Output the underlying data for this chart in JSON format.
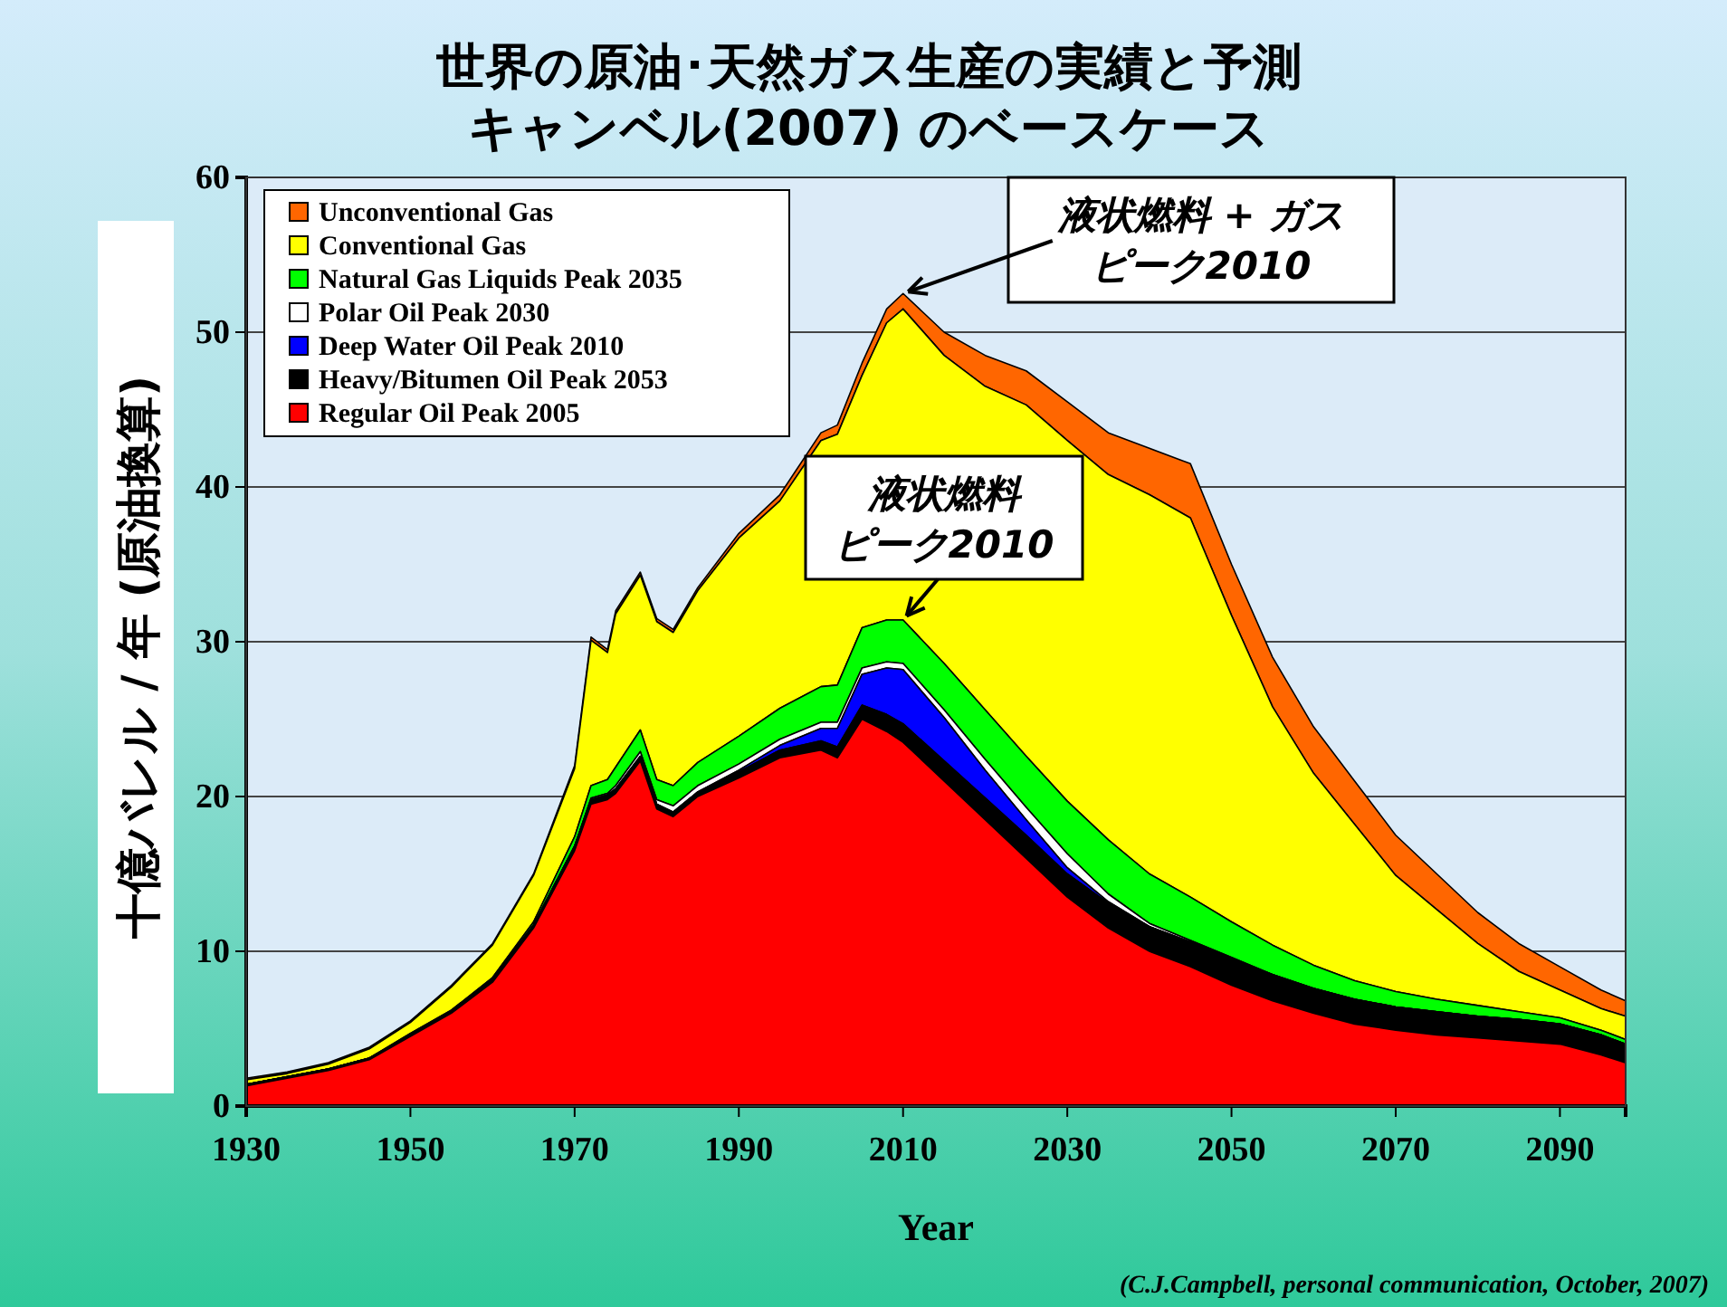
{
  "chart_data": {
    "type": "area",
    "stacked": true,
    "title": "世界の原油･天然ガス生産の実績と予測キャンベル(2007) のベースケース",
    "xlabel": "Year",
    "ylabel": "十億バレル / 年 (原油換算)",
    "x": [
      1930,
      1935,
      1940,
      1945,
      1950,
      1955,
      1960,
      1965,
      1970,
      1972,
      1974,
      1975,
      1978,
      1980,
      1982,
      1985,
      1990,
      1995,
      2000,
      2002,
      2005,
      2008,
      2010,
      2015,
      2020,
      2025,
      2030,
      2035,
      2040,
      2045,
      2050,
      2055,
      2060,
      2065,
      2070,
      2075,
      2080,
      2085,
      2090,
      2095,
      2098
    ],
    "series": [
      {
        "name": "Regular Oil Peak 2005",
        "color": "#ff0000",
        "values": [
          1.3,
          1.8,
          2.3,
          3.0,
          4.5,
          6.0,
          8.0,
          11.5,
          16.5,
          19.5,
          19.8,
          20.2,
          22.3,
          19.2,
          18.7,
          20.0,
          21.2,
          22.5,
          23.0,
          22.5,
          25.0,
          24.2,
          23.5,
          21.0,
          18.5,
          16.0,
          13.5,
          11.5,
          10.0,
          9.0,
          7.8,
          6.8,
          6.0,
          5.3,
          4.9,
          4.6,
          4.4,
          4.2,
          4.0,
          3.3,
          2.8
        ]
      },
      {
        "name": "Heavy/Bitumen Oil Peak 2053",
        "color": "#000000",
        "values": [
          0.1,
          0.1,
          0.1,
          0.1,
          0.1,
          0.1,
          0.2,
          0.2,
          0.3,
          0.3,
          0.3,
          0.3,
          0.3,
          0.3,
          0.3,
          0.3,
          0.4,
          0.5,
          0.6,
          0.7,
          0.9,
          1.1,
          1.2,
          1.3,
          1.4,
          1.5,
          1.5,
          1.6,
          1.6,
          1.6,
          1.7,
          1.7,
          1.6,
          1.6,
          1.5,
          1.5,
          1.4,
          1.4,
          1.3,
          1.3,
          1.2
        ]
      },
      {
        "name": "Deep Water Oil Peak 2010",
        "color": "#0000ff",
        "values": [
          0,
          0,
          0,
          0,
          0,
          0,
          0,
          0,
          0,
          0,
          0,
          0,
          0,
          0,
          0,
          0,
          0.1,
          0.3,
          0.8,
          1.2,
          2.0,
          3.0,
          3.5,
          2.8,
          1.8,
          1.0,
          0.4,
          0.1,
          0,
          0,
          0,
          0,
          0,
          0,
          0,
          0,
          0,
          0,
          0,
          0,
          0
        ]
      },
      {
        "name": "Polar Oil Peak 2030",
        "color": "#ffffff",
        "values": [
          0,
          0,
          0,
          0,
          0,
          0,
          0,
          0,
          0,
          0.1,
          0.1,
          0.2,
          0.3,
          0.3,
          0.4,
          0.4,
          0.4,
          0.4,
          0.4,
          0.4,
          0.4,
          0.4,
          0.4,
          0.5,
          0.7,
          0.8,
          0.9,
          0.5,
          0.2,
          0.1,
          0.1,
          0,
          0,
          0,
          0,
          0,
          0,
          0,
          0,
          0,
          0
        ]
      },
      {
        "name": "Natural Gas Liquids Peak 2035",
        "color": "#00ff00",
        "values": [
          0,
          0,
          0,
          0,
          0.1,
          0.1,
          0.1,
          0.2,
          0.6,
          0.8,
          0.9,
          1.2,
          1.4,
          1.3,
          1.3,
          1.5,
          1.8,
          2.0,
          2.3,
          2.4,
          2.6,
          2.7,
          2.8,
          3.0,
          3.2,
          3.3,
          3.4,
          3.5,
          3.2,
          2.8,
          2.3,
          1.9,
          1.5,
          1.2,
          1.0,
          0.8,
          0.7,
          0.5,
          0.4,
          0.3,
          0.3
        ]
      },
      {
        "name": "Conventional Gas",
        "color": "#ffff00",
        "values": [
          0.3,
          0.2,
          0.3,
          0.6,
          0.7,
          1.5,
          2.1,
          3.0,
          4.4,
          9.4,
          8.2,
          9.9,
          10.0,
          10.2,
          9.9,
          11.1,
          12.8,
          13.4,
          15.9,
          16.2,
          16.3,
          19.2,
          20.1,
          19.9,
          20.9,
          22.7,
          23.3,
          23.6,
          24.5,
          24.5,
          19.8,
          15.4,
          12.4,
          10.1,
          7.5,
          5.8,
          4.0,
          2.6,
          1.8,
          1.4,
          1.5
        ]
      },
      {
        "name": "Unconventional Gas",
        "color": "#ff6600",
        "values": [
          0.1,
          0.1,
          0.1,
          0.1,
          0.1,
          0.1,
          0.1,
          0.1,
          0.2,
          0.2,
          0.2,
          0.2,
          0.2,
          0.2,
          0.2,
          0.2,
          0.3,
          0.4,
          0.5,
          0.6,
          0.8,
          0.9,
          1.0,
          1.5,
          2.0,
          2.2,
          2.5,
          2.7,
          3.0,
          3.5,
          3.3,
          3.2,
          3.0,
          2.8,
          2.6,
          2.3,
          2.0,
          1.8,
          1.5,
          1.2,
          1.0
        ]
      }
    ],
    "xlim": [
      1930,
      2098
    ],
    "xticks": [
      1930,
      1950,
      1970,
      1990,
      2010,
      2030,
      2050,
      2070,
      2090
    ],
    "ylim": [
      0,
      60
    ],
    "yticks": [
      0,
      10,
      20,
      30,
      40,
      50,
      60
    ],
    "grid": "y",
    "legend": "top left",
    "annotations": [
      {
        "text": "液状燃料 + ガスピーク2010",
        "x": 2010,
        "y": 52.5
      },
      {
        "text": "液状燃料ピーク2010",
        "x": 2010,
        "y": 31.4
      },
      "(C.J.Campbell, personal communication, October, 2007)"
    ]
  }
}
